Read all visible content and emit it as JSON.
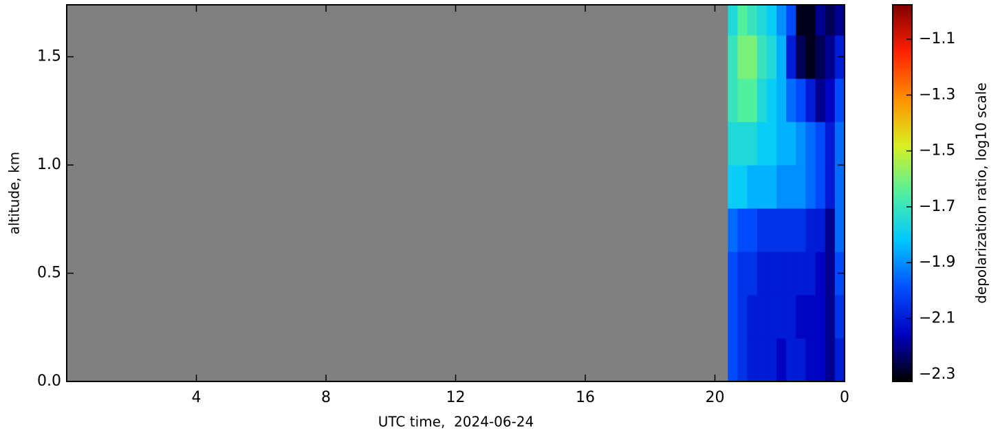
{
  "chart_data": {
    "type": "heatmap",
    "xlabel": "UTC time,  2024-06-24",
    "ylabel": "altitude, km",
    "colorbar_label": "depolarization ratio, log10 scale",
    "xlim": [
      0,
      24
    ],
    "xticks": [
      4,
      8,
      12,
      16,
      20,
      {
        "value": 24,
        "label": "0"
      }
    ],
    "ylim": [
      0,
      1.74
    ],
    "yticks": [
      {
        "value": 0,
        "label": "0.0"
      },
      0.5,
      {
        "value": 1,
        "label": "1.0"
      },
      1.5
    ],
    "clim": [
      -2.325,
      -0.977
    ],
    "cticks": [
      {
        "value": -1.1,
        "label": "−1.1"
      },
      {
        "value": -1.3,
        "label": "−1.3"
      },
      {
        "value": -1.5,
        "label": "−1.5"
      },
      {
        "value": -1.7,
        "label": "−1.7"
      },
      {
        "value": -1.9,
        "label": "−1.9"
      },
      {
        "value": -2.1,
        "label": "−2.1"
      },
      {
        "value": -2.3,
        "label": "−2.3"
      }
    ],
    "colormap": [
      "#000000",
      "#0000c0",
      "#0050ff",
      "#00c8ff",
      "#50f0a0",
      "#d8f020",
      "#ff9000",
      "#ff2000",
      "#800000"
    ],
    "nodata_color": "#808080",
    "x_bins": [
      20.4,
      20.7,
      21.0,
      21.3,
      21.6,
      21.9,
      22.2,
      22.5,
      22.8,
      23.1,
      23.4,
      23.7,
      24.0
    ],
    "y_bins": [
      0,
      0.2,
      0.4,
      0.6,
      0.8,
      1.0,
      1.2,
      1.4,
      1.6,
      1.74
    ],
    "z": [
      [
        -2.0,
        -2.05,
        -2.1,
        -2.1,
        -2.1,
        -2.15,
        -2.1,
        -2.1,
        -2.15,
        -2.15,
        -2.2,
        -2.1
      ],
      [
        -2.0,
        -2.05,
        -2.1,
        -2.1,
        -2.1,
        -2.1,
        -2.1,
        -2.15,
        -2.15,
        -2.15,
        -2.2,
        -2.05
      ],
      [
        -2.0,
        -2.05,
        -2.05,
        -2.1,
        -2.1,
        -2.1,
        -2.1,
        -2.1,
        -2.1,
        -2.15,
        -2.2,
        -2.0
      ],
      [
        -1.95,
        -2.0,
        -2.0,
        -2.05,
        -2.05,
        -2.05,
        -2.05,
        -2.05,
        -2.1,
        -2.1,
        -2.2,
        -1.95
      ],
      [
        -1.8,
        -1.8,
        -1.85,
        -1.85,
        -1.85,
        -1.9,
        -1.9,
        -1.9,
        -1.95,
        -2.0,
        -2.1,
        -1.95
      ],
      [
        -1.75,
        -1.75,
        -1.75,
        -1.8,
        -1.8,
        -1.85,
        -1.85,
        -1.9,
        -1.95,
        -2.0,
        -2.1,
        -1.95
      ],
      [
        -1.7,
        -1.65,
        -1.65,
        -1.75,
        -1.8,
        -1.85,
        -1.95,
        -2.0,
        -2.1,
        -2.2,
        -2.15,
        -2.0
      ],
      [
        -1.7,
        -1.6,
        -1.6,
        -1.7,
        -1.75,
        -1.85,
        -2.1,
        -2.25,
        -2.3,
        -2.25,
        -2.2,
        -2.1
      ],
      [
        -1.75,
        -1.65,
        -1.7,
        -1.75,
        -1.8,
        -1.9,
        -2.0,
        -2.3,
        -2.3,
        -2.2,
        -2.25,
        -2.2
      ]
    ]
  }
}
